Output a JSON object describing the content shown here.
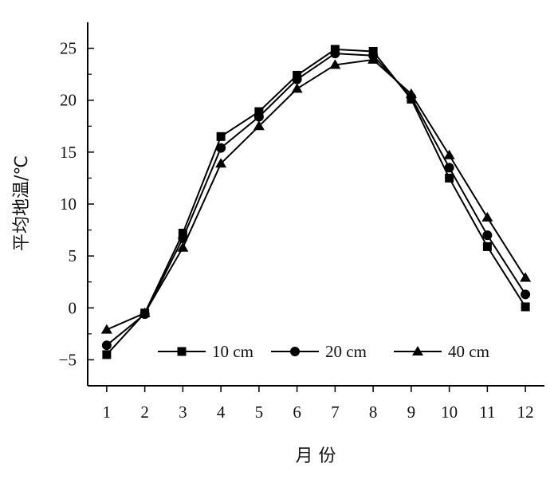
{
  "chart_data": {
    "type": "line",
    "xlabel": "月 份",
    "ylabel": "平均地温/℃",
    "categories": [
      "1",
      "2",
      "3",
      "4",
      "5",
      "6",
      "7",
      "8",
      "9",
      "10",
      "11",
      "12"
    ],
    "x": [
      1,
      2,
      3,
      4,
      5,
      6,
      7,
      8,
      9,
      10,
      11,
      12
    ],
    "yticks": [
      "-5",
      "0",
      "5",
      "10",
      "15",
      "20",
      "25"
    ],
    "ylim": [
      -7.5,
      27.5
    ],
    "xlim": [
      0.5,
      12.5
    ],
    "grid": false,
    "legend_position": "bottom-center",
    "series": [
      {
        "name": "10 cm",
        "marker": "square",
        "values": [
          -4.5,
          -0.5,
          7.2,
          16.5,
          18.9,
          22.4,
          24.9,
          24.7,
          20.1,
          12.5,
          5.9,
          0.1
        ]
      },
      {
        "name": "20 cm",
        "marker": "circle",
        "values": [
          -3.6,
          -0.6,
          6.7,
          15.4,
          18.4,
          22.0,
          24.5,
          24.3,
          20.3,
          13.5,
          7.0,
          1.3
        ]
      },
      {
        "name": "40 cm",
        "marker": "triangle",
        "values": [
          -2.1,
          -0.5,
          5.8,
          13.9,
          17.5,
          21.1,
          23.4,
          23.9,
          20.6,
          14.7,
          8.7,
          2.9
        ]
      }
    ],
    "colors": {
      "line": "#000000",
      "marker": "#000000"
    }
  }
}
